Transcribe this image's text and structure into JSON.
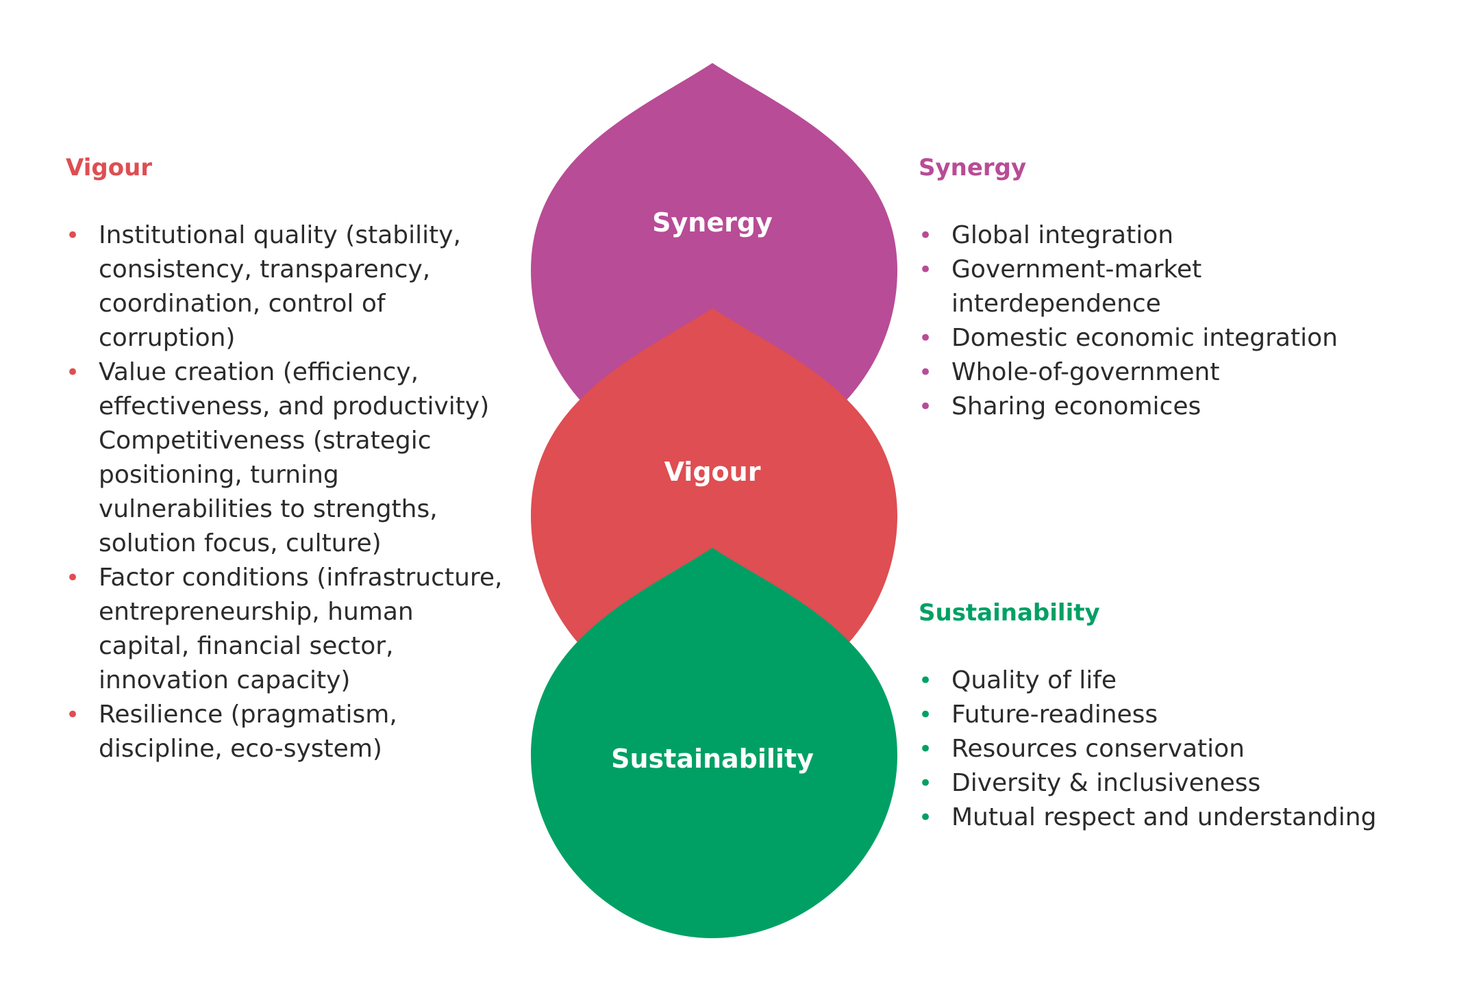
{
  "colors": {
    "synergy": "#b84c96",
    "vigour": "#de4e52",
    "sustainability": "#00a064",
    "body_text": "#2b2b2b"
  },
  "diagram": {
    "shapes": [
      {
        "label": "Synergy",
        "color": "#b84c96"
      },
      {
        "label": "Vigour",
        "color": "#de4e52"
      },
      {
        "label": "Sustainability",
        "color": "#00a064"
      }
    ]
  },
  "vigour_panel": {
    "title": "Vigour",
    "items": [
      {
        "bullet": "•",
        "text": "Institutional quality (stability, consistency, transparency, coordination, control of corruption)"
      },
      {
        "bullet": "•",
        "text": "Value creation (efficiency, effectiveness, and productivity)"
      },
      {
        "bullet": "",
        "text": "Competitiveness (strategic positioning, turning vulnerabilities to strengths, solution focus, culture)"
      },
      {
        "bullet": "•",
        "text": "Factor conditions (infrastructure, entrepreneurship, human capital, financial sector, innovation capacity)"
      },
      {
        "bullet": "•",
        "text": "Resilience (pragmatism, discipline, eco-system)"
      }
    ]
  },
  "synergy_panel": {
    "title": "Synergy",
    "items": [
      {
        "bullet": "•",
        "text": "Global integration"
      },
      {
        "bullet": "•",
        "text": "Government-market interdependence"
      },
      {
        "bullet": "•",
        "text": "Domestic economic integration"
      },
      {
        "bullet": "•",
        "text": "Whole-of-government"
      },
      {
        "bullet": "•",
        "text": "Sharing economices"
      }
    ]
  },
  "sustainability_panel": {
    "title": "Sustainability",
    "items": [
      {
        "bullet": "•",
        "text": "Quality of life"
      },
      {
        "bullet": "•",
        "text": "Future-readiness"
      },
      {
        "bullet": "•",
        "text": "Resources conservation"
      },
      {
        "bullet": "•",
        "text": "Diversity & inclusiveness"
      },
      {
        "bullet": "•",
        "text": "Mutual respect and understanding"
      }
    ]
  }
}
